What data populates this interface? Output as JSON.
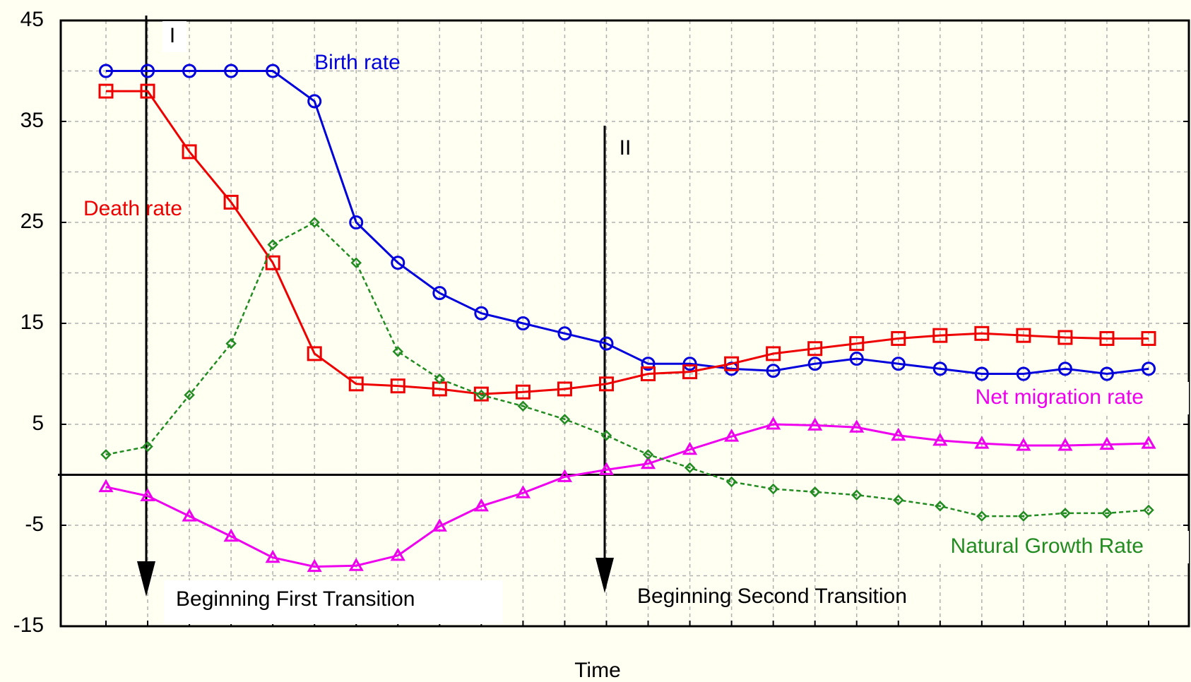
{
  "chart_data": {
    "type": "line",
    "x_label": "Time",
    "categories": [
      null,
      null,
      null,
      null,
      null,
      null,
      null,
      null,
      null,
      null,
      null,
      null,
      null,
      null,
      null,
      null,
      null,
      null,
      null,
      null,
      null,
      null,
      null,
      null,
      null,
      null
    ],
    "series": [
      {
        "name": "Birth rate",
        "color": "#0000dd",
        "marker": "circle",
        "dashed": false,
        "values": [
          40,
          40,
          40,
          40,
          40,
          37,
          25,
          21,
          18,
          16,
          15,
          14,
          13,
          11,
          11,
          10.5,
          10.3,
          11,
          11.5,
          11,
          10.5,
          10,
          10,
          10.5,
          10,
          10.5
        ]
      },
      {
        "name": "Death rate",
        "color": "#ee0000",
        "marker": "square",
        "dashed": false,
        "values": [
          38,
          38,
          32,
          27,
          21,
          12,
          9,
          8.8,
          8.5,
          8,
          8.2,
          8.5,
          9,
          10,
          10.2,
          11,
          12,
          12.5,
          13,
          13.5,
          13.8,
          14,
          13.8,
          13.6,
          13.5,
          13.5
        ]
      },
      {
        "name": "Net migration rate",
        "color": "#ee00ee",
        "marker": "triangle",
        "dashed": false,
        "values": [
          -1.2,
          -2.1,
          -4.1,
          -6.1,
          -8.2,
          -9.1,
          -9,
          -8,
          -5.1,
          -3.1,
          -1.8,
          -0.2,
          0.5,
          1.1,
          2.5,
          3.8,
          5,
          4.9,
          4.7,
          3.9,
          3.4,
          3.1,
          2.9,
          2.9,
          3,
          3.1
        ]
      },
      {
        "name": "Natural Growth Rate",
        "color": "#228b22",
        "marker": "diamond",
        "dashed": true,
        "values": [
          2,
          2.8,
          7.9,
          13,
          22.8,
          25,
          21,
          12.2,
          9.5,
          7.9,
          6.8,
          5.5,
          3.9,
          2,
          0.7,
          -0.7,
          -1.4,
          -1.7,
          -2,
          -2.5,
          -3.1,
          -4.1,
          -4.1,
          -3.8,
          -3.8,
          -3.5
        ]
      }
    ],
    "annotations": [
      "I",
      "II",
      "Beginning First Transition",
      "Beginning Second Transition"
    ],
    "ylim": [
      -15,
      45
    ],
    "yticks": [
      -15,
      -5,
      5,
      15,
      25,
      35,
      45
    ],
    "y_minor_ticks": [
      -10,
      0,
      10,
      20,
      30,
      40
    ],
    "grid": true
  }
}
